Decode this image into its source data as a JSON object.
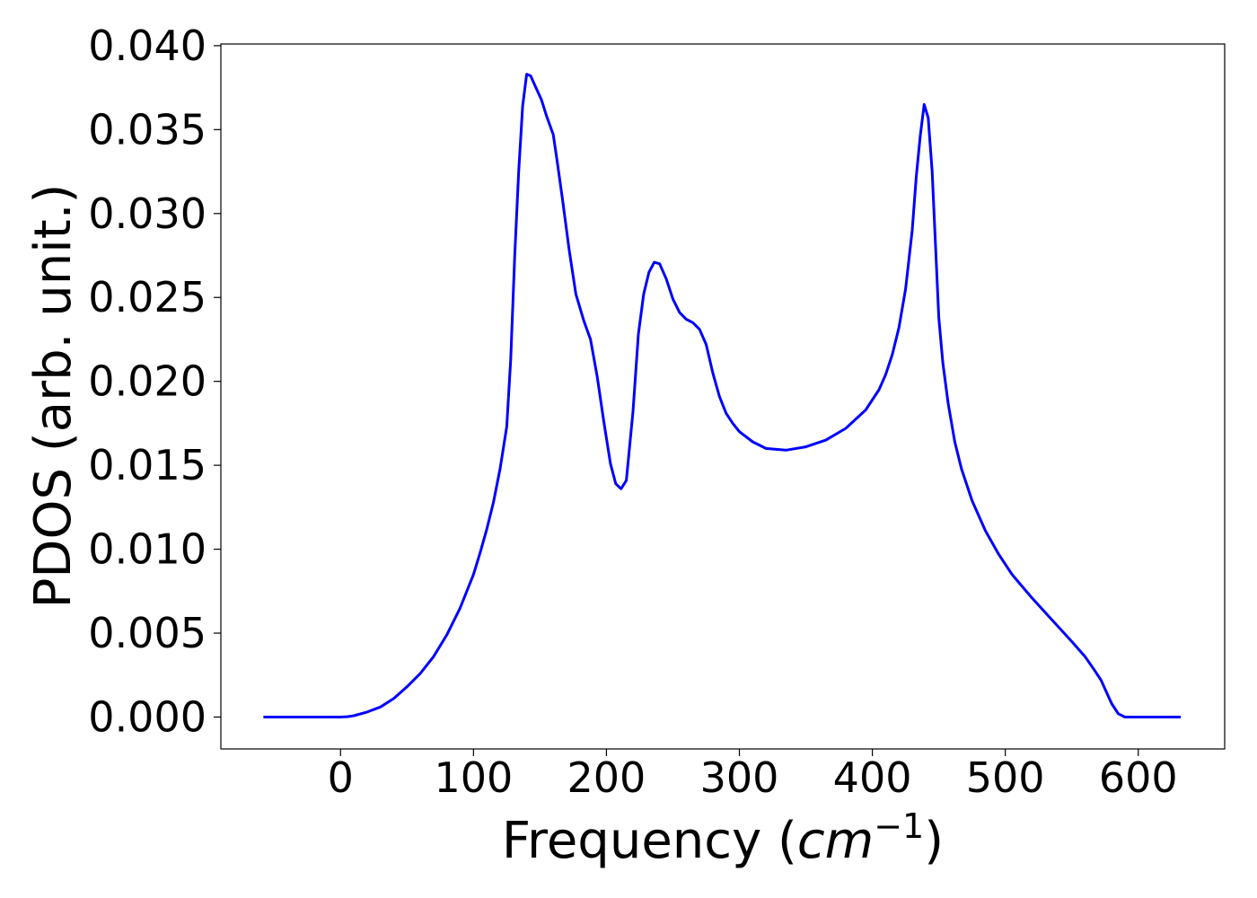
{
  "chart_data": {
    "type": "line",
    "title": "",
    "xlabel": "Frequency (",
    "xlabel_unit": "cm",
    "xlabel_exponent": "−1",
    "xlabel_close": ")",
    "ylabel": "PDOS (arb. unit.)",
    "xlim": [
      -90,
      665
    ],
    "ylim": [
      -0.0019,
      0.0401
    ],
    "xticks": [
      0,
      100,
      200,
      300,
      400,
      500,
      600
    ],
    "xtick_labels": [
      "0",
      "100",
      "200",
      "300",
      "400",
      "500",
      "600"
    ],
    "yticks": [
      0.0,
      0.005,
      0.01,
      0.015,
      0.02,
      0.025,
      0.03,
      0.035,
      0.04
    ],
    "ytick_labels": [
      "0.000",
      "0.005",
      "0.010",
      "0.015",
      "0.020",
      "0.025",
      "0.030",
      "0.035",
      "0.040"
    ],
    "grid": false,
    "series": [
      {
        "color": "#0000ff",
        "x": [
          -58,
          -40,
          -20,
          0,
          5,
          10,
          20,
          30,
          40,
          50,
          60,
          70,
          80,
          90,
          100,
          105,
          110,
          115,
          120,
          125,
          128,
          131,
          134,
          137,
          140,
          143,
          147,
          151,
          155,
          160,
          163,
          167,
          172,
          177,
          183,
          188,
          193,
          198,
          203,
          207,
          211,
          215,
          220,
          224,
          228,
          232,
          236,
          240,
          245,
          250,
          255,
          260,
          265,
          270,
          275,
          280,
          285,
          290,
          295,
          300,
          310,
          320,
          335,
          350,
          365,
          380,
          395,
          405,
          410,
          415,
          420,
          425,
          430,
          433,
          436,
          439,
          442,
          445,
          450,
          453,
          457,
          462,
          467,
          475,
          485,
          495,
          505,
          520,
          535,
          550,
          560,
          567,
          572,
          576,
          580,
          585,
          590,
          600,
          620,
          632
        ],
        "y": [
          0.0,
          0.0,
          0.0,
          0.0,
          2e-05,
          8e-05,
          0.0003,
          0.0006,
          0.0011,
          0.0018,
          0.0026,
          0.0036,
          0.0049,
          0.0065,
          0.0085,
          0.0098,
          0.0112,
          0.0128,
          0.0148,
          0.0173,
          0.0213,
          0.0275,
          0.0325,
          0.0364,
          0.0383,
          0.0382,
          0.0375,
          0.0368,
          0.0358,
          0.0347,
          0.0331,
          0.0308,
          0.0278,
          0.0252,
          0.0236,
          0.0225,
          0.0203,
          0.0176,
          0.0151,
          0.0139,
          0.0136,
          0.0141,
          0.0182,
          0.0228,
          0.0252,
          0.0265,
          0.0271,
          0.027,
          0.0261,
          0.0249,
          0.0241,
          0.0237,
          0.0235,
          0.0231,
          0.0222,
          0.0205,
          0.0191,
          0.0181,
          0.0175,
          0.017,
          0.0164,
          0.016,
          0.0159,
          0.0161,
          0.0165,
          0.0172,
          0.0183,
          0.0195,
          0.0204,
          0.0216,
          0.0232,
          0.0255,
          0.029,
          0.0322,
          0.0346,
          0.0365,
          0.0357,
          0.0325,
          0.0238,
          0.0211,
          0.0187,
          0.0164,
          0.0148,
          0.0129,
          0.0111,
          0.0097,
          0.0085,
          0.0071,
          0.0058,
          0.0045,
          0.0036,
          0.0028,
          0.0022,
          0.0015,
          0.0008,
          0.0002,
          0.0,
          0.0,
          0.0,
          0.0
        ]
      }
    ]
  }
}
